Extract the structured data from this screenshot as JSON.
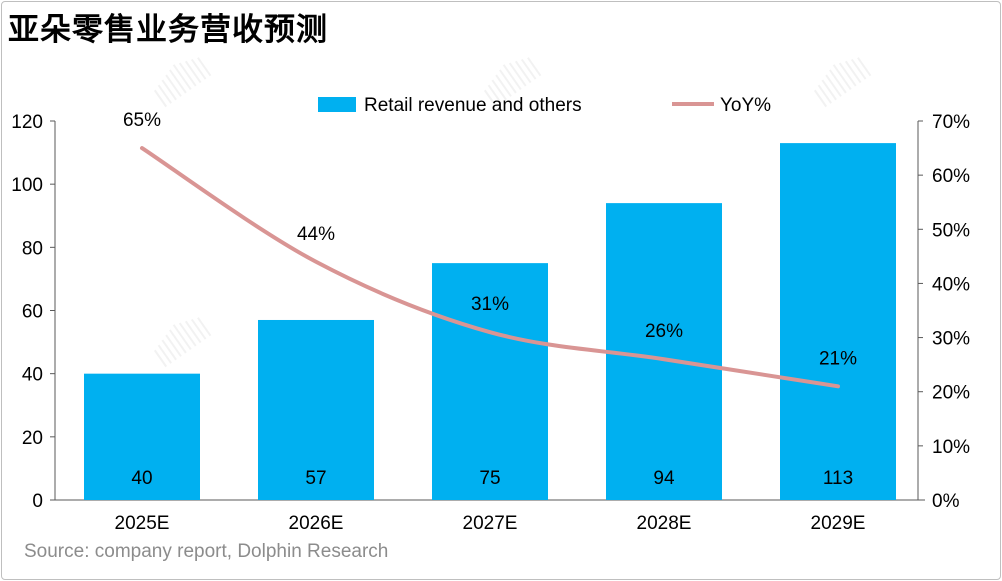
{
  "title": "亚朵零售业务营收预测",
  "source": "Source: company report, Dolphin Research",
  "watermark": "DolphinResearch",
  "chart_data": {
    "type": "bar+line",
    "categories": [
      "2025E",
      "2026E",
      "2027E",
      "2028E",
      "2029E"
    ],
    "series": [
      {
        "name": "Retail revenue and others",
        "type": "bar",
        "axis": "left",
        "values": [
          40,
          57,
          75,
          94,
          113
        ],
        "labels": [
          "40",
          "57",
          "75",
          "94",
          "113"
        ],
        "color": "#00b0f0"
      },
      {
        "name": "YoY%",
        "type": "line",
        "axis": "right",
        "values": [
          65,
          44,
          31,
          26,
          21
        ],
        "labels": [
          "65%",
          "44%",
          "31%",
          "26%",
          "21%"
        ],
        "color": "#d99594"
      }
    ],
    "left_axis": {
      "ylim": [
        0,
        120
      ],
      "ticks": [
        "0",
        "20",
        "40",
        "60",
        "80",
        "100",
        "120"
      ]
    },
    "right_axis": {
      "ylim": [
        0,
        70
      ],
      "ticks": [
        "0%",
        "10%",
        "20%",
        "30%",
        "40%",
        "50%",
        "60%",
        "70%"
      ]
    },
    "legend": "top-center",
    "grid": false
  }
}
